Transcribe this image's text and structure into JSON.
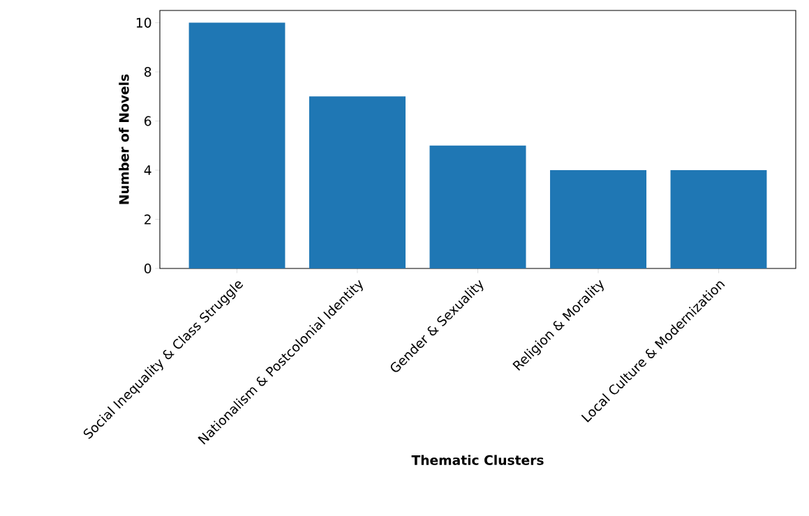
{
  "chart_data": {
    "type": "bar",
    "xlabel": "Thematic Clusters",
    "ylabel": "Number of Novels",
    "categories": [
      "Social Inequality & Class Struggle",
      "Nationalism & Postcolonial Identity",
      "Gender & Sexuality",
      "Religion & Morality",
      "Local Culture & Modernization"
    ],
    "values": [
      10,
      7,
      5,
      4,
      4
    ],
    "color": "#1f77b4",
    "ylim": [
      0,
      10.5
    ],
    "yticks": [
      0,
      2,
      4,
      6,
      8,
      10
    ],
    "grid": false
  }
}
